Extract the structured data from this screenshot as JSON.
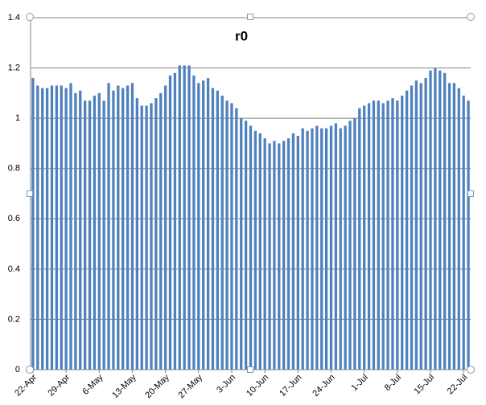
{
  "chart_data": {
    "type": "bar",
    "title": "r0",
    "categories": [
      "22-Apr",
      null,
      null,
      null,
      null,
      null,
      null,
      "29-Apr",
      null,
      null,
      null,
      null,
      null,
      null,
      "6-May",
      null,
      null,
      null,
      null,
      null,
      null,
      "13-May",
      null,
      null,
      null,
      null,
      null,
      null,
      "20-May",
      null,
      null,
      null,
      null,
      null,
      null,
      "27-May",
      null,
      null,
      null,
      null,
      null,
      null,
      "3-Jun",
      null,
      null,
      null,
      null,
      null,
      null,
      "10-Jun",
      null,
      null,
      null,
      null,
      null,
      null,
      "17-Jun",
      null,
      null,
      null,
      null,
      null,
      null,
      "24-Jun",
      null,
      null,
      null,
      null,
      null,
      null,
      "1-Jul",
      null,
      null,
      null,
      null,
      null,
      null,
      "8-Jul",
      null,
      null,
      null,
      null,
      null,
      null,
      "15-Jul",
      null,
      null,
      null,
      null,
      null,
      null,
      "22-Jul",
      null
    ],
    "values": [
      1.16,
      1.13,
      1.12,
      1.12,
      1.13,
      1.13,
      1.13,
      1.12,
      1.14,
      1.1,
      1.11,
      1.07,
      1.07,
      1.09,
      1.1,
      1.07,
      1.14,
      1.11,
      1.13,
      1.12,
      1.13,
      1.14,
      1.08,
      1.05,
      1.05,
      1.06,
      1.08,
      1.1,
      1.13,
      1.17,
      1.18,
      1.21,
      1.21,
      1.21,
      1.17,
      1.14,
      1.15,
      1.16,
      1.12,
      1.11,
      1.09,
      1.07,
      1.06,
      1.04,
      1.0,
      0.99,
      0.97,
      0.95,
      0.94,
      0.92,
      0.9,
      0.91,
      0.9,
      0.91,
      0.92,
      0.94,
      0.93,
      0.96,
      0.95,
      0.96,
      0.97,
      0.96,
      0.96,
      0.97,
      0.98,
      0.96,
      0.97,
      0.99,
      1.0,
      1.04,
      1.05,
      1.06,
      1.07,
      1.07,
      1.06,
      1.07,
      1.08,
      1.07,
      1.09,
      1.11,
      1.13,
      1.15,
      1.14,
      1.16,
      1.19,
      1.2,
      1.19,
      1.18,
      1.14,
      1.14,
      1.12,
      1.09,
      1.07
    ],
    "color": "#4f81bd",
    "ylim": [
      0,
      1.4
    ],
    "yticks": [
      0,
      0.2,
      0.4,
      0.6,
      0.8,
      1,
      1.2,
      1.4
    ],
    "grid": true
  }
}
